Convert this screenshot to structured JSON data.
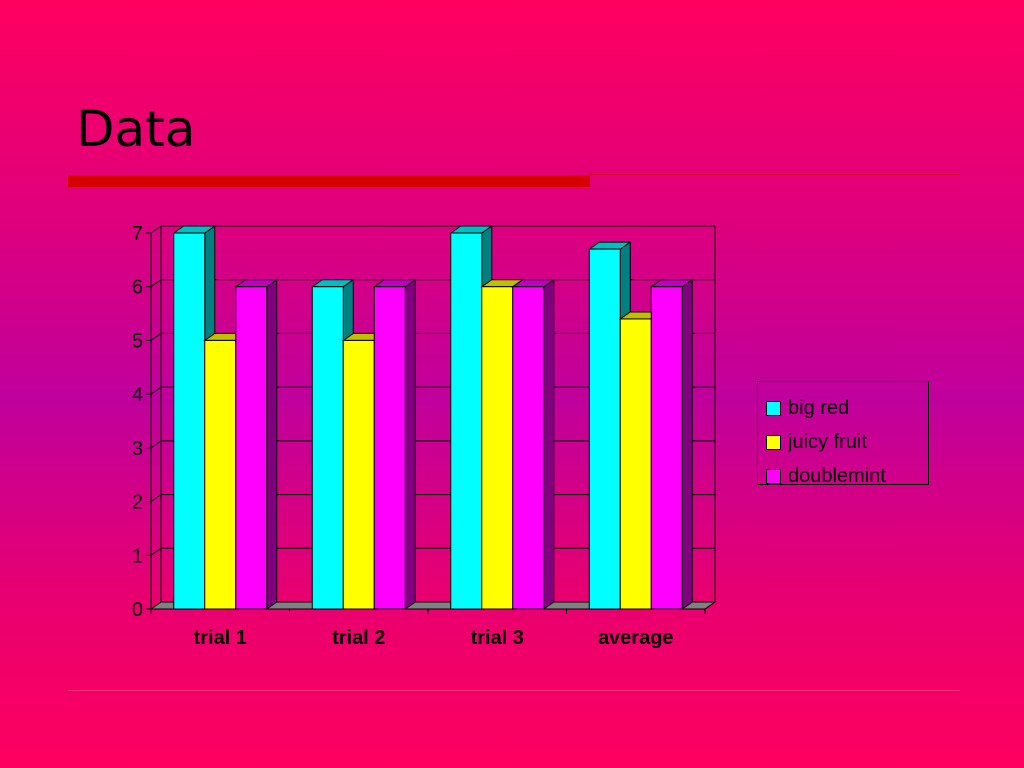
{
  "slide": {
    "title": "Data"
  },
  "chart_data": {
    "type": "bar",
    "categories": [
      "trial 1",
      "trial 2",
      "trial 3",
      "average"
    ],
    "series": [
      {
        "name": "big red",
        "values": [
          7,
          6,
          7,
          6.7
        ],
        "color": "#00ffff"
      },
      {
        "name": "juicy fruit",
        "values": [
          5,
          5,
          6,
          5.4
        ],
        "color": "#ffff00"
      },
      {
        "name": "doublemint",
        "values": [
          6,
          6,
          6,
          6
        ],
        "color": "#ff00ff"
      }
    ],
    "yticks": [
      "0",
      "1",
      "2",
      "3",
      "4",
      "5",
      "6",
      "7"
    ],
    "ylim": [
      0,
      7
    ],
    "grid": true,
    "three_d": true,
    "legend_position": "right"
  }
}
